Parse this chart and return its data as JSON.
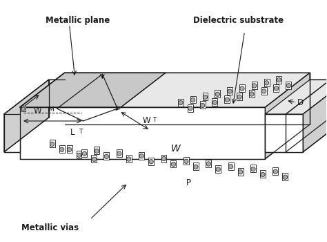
{
  "fig_width": 4.74,
  "fig_height": 3.5,
  "dpi": 100,
  "bg_color": "#ffffff",
  "line_color": "#1a1a1a",
  "labels": {
    "metallic_plane": "Metallic plane",
    "dielectric_substrate": "Dielectric substrate",
    "WM": "W",
    "WM_sub": "M",
    "LT": "L",
    "LT_sub": "T",
    "WT": "W",
    "WT_sub": "T",
    "W": "W",
    "D": "D",
    "P": "P",
    "metallic_vias": "Metallic vias"
  }
}
